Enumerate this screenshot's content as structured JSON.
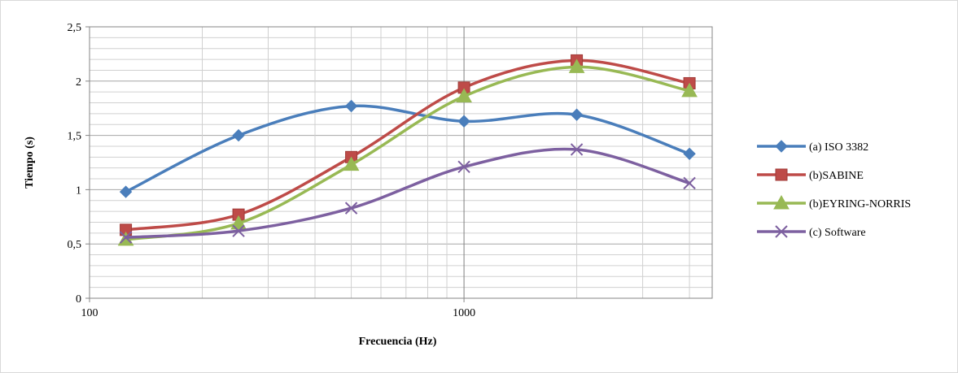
{
  "chart_data": {
    "type": "scatter",
    "smooth": true,
    "xscale": "log",
    "xlim": [
      100,
      4600
    ],
    "ylim": [
      0,
      2.5
    ],
    "xlabel": "Frecuencia (Hz)",
    "ylabel": "Tiempo (s)",
    "x_ticks": [
      100,
      1000
    ],
    "x_tick_labels": [
      "100",
      "1000"
    ],
    "y_ticks": [
      0,
      0.5,
      1,
      1.5,
      2,
      2.5
    ],
    "y_tick_labels": [
      "0",
      "0,5",
      "1",
      "1,5",
      "2",
      "2,5"
    ],
    "grid": true,
    "minor_grid": true,
    "legend_position": "right",
    "series": [
      {
        "name": "(a) ISO 3382",
        "color": "#4a7ebb",
        "marker": "diamond",
        "x": [
          125,
          250,
          500,
          1000,
          2000,
          4000
        ],
        "y": [
          0.98,
          1.5,
          1.77,
          1.63,
          1.69,
          1.33
        ]
      },
      {
        "name": "(b)SABINE",
        "color": "#be4b48",
        "marker": "square",
        "x": [
          125,
          250,
          500,
          1000,
          2000,
          4000
        ],
        "y": [
          0.63,
          0.77,
          1.3,
          1.94,
          2.19,
          1.98
        ]
      },
      {
        "name": "(b)EYRING-NORRIS",
        "color": "#98b954",
        "marker": "triangle",
        "x": [
          125,
          250,
          500,
          1000,
          2000,
          4000
        ],
        "y": [
          0.54,
          0.69,
          1.23,
          1.86,
          2.13,
          1.91
        ]
      },
      {
        "name": "(c) Software",
        "color": "#7d60a0",
        "marker": "x",
        "x": [
          125,
          250,
          500,
          1000,
          2000,
          4000
        ],
        "y": [
          0.56,
          0.62,
          0.83,
          1.21,
          1.37,
          1.06
        ]
      }
    ]
  }
}
